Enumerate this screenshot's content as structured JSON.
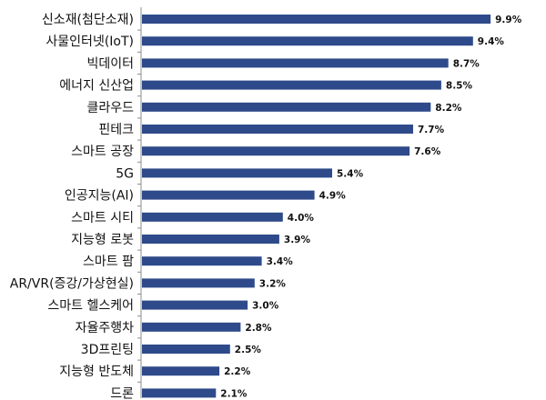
{
  "chart_data": {
    "type": "bar",
    "orientation": "horizontal",
    "categories": [
      "신소재(첨단소재)",
      "사물인터넷(IoT)",
      "빅데이터",
      "에너지 신산업",
      "클라우드",
      "핀테크",
      "스마트 공장",
      "5G",
      "인공지능(AI)",
      "스마트 시티",
      "지능형 로봇",
      "스마트 팜",
      "AR/VR(증강/가상현실)",
      "스마트 헬스케어",
      "자율주행차",
      "3D프린팅",
      "지능형 반도체",
      "드론"
    ],
    "values": [
      9.9,
      9.4,
      8.7,
      8.5,
      8.2,
      7.7,
      7.6,
      5.4,
      4.9,
      4.0,
      3.9,
      3.4,
      3.2,
      3.0,
      2.8,
      2.5,
      2.2,
      2.1
    ],
    "value_labels": [
      "9.9%",
      "9.4%",
      "8.7%",
      "8.5%",
      "8.2%",
      "7.7%",
      "7.6%",
      "5.4%",
      "4.9%",
      "4.0%",
      "3.9%",
      "3.4%",
      "3.2%",
      "3.0%",
      "2.8%",
      "2.5%",
      "2.2%",
      "2.1%"
    ],
    "xlim": [
      0,
      10
    ],
    "grid": false,
    "legend": "none",
    "colors": {
      "bar": "#2E4A8A",
      "axis": "#8C8C8C"
    }
  }
}
